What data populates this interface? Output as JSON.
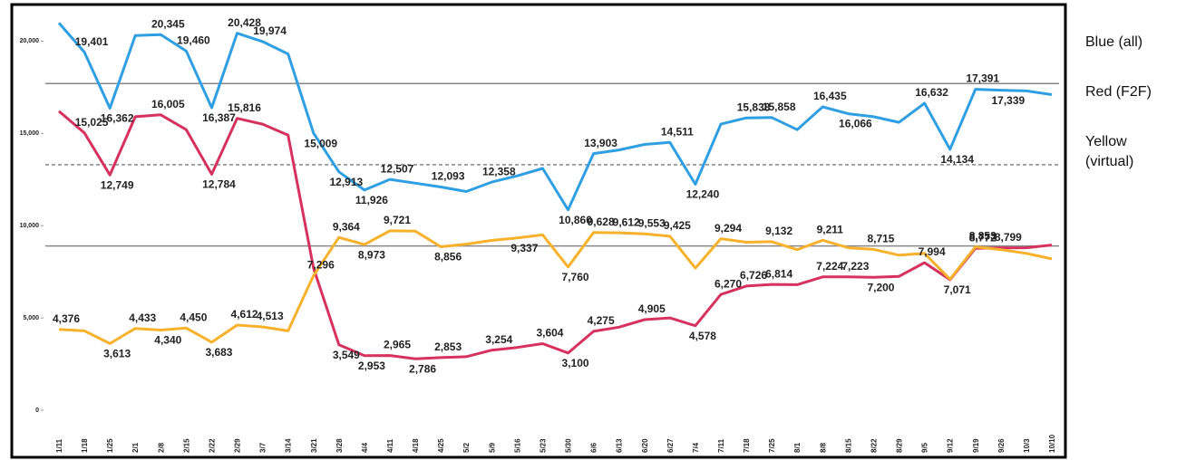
{
  "chart_data": {
    "type": "line",
    "categories": [
      "1/11",
      "1/18",
      "1/25",
      "2/1",
      "2/8",
      "2/15",
      "2/22",
      "2/29",
      "3/7",
      "3/14",
      "3/21",
      "3/28",
      "4/4",
      "4/11",
      "4/18",
      "4/25",
      "5/2",
      "5/9",
      "5/16",
      "5/23",
      "5/30",
      "6/6",
      "6/13",
      "6/20",
      "6/27",
      "7/4",
      "7/11",
      "7/18",
      "7/25",
      "8/1",
      "8/8",
      "8/15",
      "8/22",
      "8/29",
      "9/5",
      "9/12",
      "9/19",
      "9/26",
      "10/3",
      "10/10"
    ],
    "series": [
      {
        "name": "Blue (all)",
        "color": "#2f9fe3",
        "values": [
          20980,
          19401,
          16362,
          20300,
          20345,
          19460,
          16387,
          20428,
          19974,
          19300,
          15009,
          12913,
          11926,
          12507,
          12300,
          12093,
          11850,
          12358,
          12700,
          13100,
          10860,
          13903,
          14100,
          14400,
          14511,
          12240,
          15500,
          15838,
          15858,
          15200,
          16435,
          16066,
          15900,
          15600,
          16632,
          14134,
          17391,
          17339,
          17300,
          17100
        ],
        "value_labels": [
          null,
          "19,401",
          "16,362",
          null,
          "20,345",
          "19,460",
          "16,387",
          "20,428",
          "19,974",
          null,
          "15,009",
          "12,913",
          "11,926",
          "12,507",
          null,
          "12,093",
          null,
          "12,358",
          null,
          null,
          "10,860",
          "13,903",
          null,
          null,
          "14,511",
          "12,240",
          null,
          "15,838",
          "15,858",
          null,
          "16,435",
          "16,066",
          null,
          null,
          "16,632",
          "14,134",
          "17,391",
          "17,339",
          null,
          null
        ]
      },
      {
        "name": "Red (F2F)",
        "color": "#d6315f",
        "values": [
          16200,
          15025,
          12749,
          15900,
          16005,
          15200,
          12784,
          15816,
          15500,
          14900,
          7700,
          3549,
          2953,
          2965,
          2786,
          2853,
          2900,
          3254,
          3400,
          3604,
          3100,
          4275,
          4500,
          4905,
          5000,
          4578,
          6270,
          6726,
          6814,
          6800,
          7224,
          7223,
          7200,
          7250,
          7994,
          7071,
          8772,
          8799,
          8800,
          8950
        ],
        "value_labels": [
          null,
          "15,025",
          "12,749",
          null,
          "16,005",
          null,
          "12,784",
          "15,816",
          null,
          null,
          null,
          "3,549",
          "2,953",
          "2,965",
          "2,786",
          "2,853",
          null,
          "3,254",
          null,
          "3,604",
          "3,100",
          "4,275",
          null,
          "4,905",
          null,
          "4,578",
          "6,270",
          "6,726",
          "6,814",
          null,
          "7,224",
          "7,223",
          "7,200",
          null,
          "7,994",
          "7,071",
          "8,772",
          "8,799",
          null,
          null
        ]
      },
      {
        "name": "Yellow (virtual)",
        "color": "#f7b12b",
        "values": [
          4376,
          4300,
          3613,
          4433,
          4340,
          4450,
          3683,
          4612,
          4513,
          4300,
          7296,
          9364,
          8973,
          9721,
          9700,
          8856,
          9000,
          9200,
          9337,
          9500,
          7760,
          9628,
          9612,
          9553,
          9425,
          7700,
          9294,
          9100,
          9132,
          8700,
          9211,
          8800,
          8715,
          8400,
          8500,
          7100,
          8853,
          8700,
          8500,
          8200
        ],
        "value_labels": [
          "4,376",
          null,
          "3,613",
          "4,433",
          "4,340",
          "4,450",
          "3,683",
          "4,612",
          "4,513",
          null,
          "7,296",
          "9,364",
          "8,973",
          "9,721",
          null,
          "8,856",
          null,
          null,
          "9,337",
          null,
          "7,760",
          "9,628",
          "9,612",
          "9,553",
          "9,425",
          null,
          "9,294",
          null,
          "9,132",
          null,
          "9,211",
          null,
          "8,715",
          null,
          null,
          null,
          "8,853",
          null,
          null,
          null
        ]
      }
    ],
    "ylim": [
      0,
      21000
    ],
    "yticks": [
      0,
      {
        "value": 5000,
        "label": "5,000"
      },
      {
        "value": 10000,
        "label": "10,000"
      },
      {
        "value": 15000,
        "label": "15,000"
      },
      {
        "value": 20000,
        "label": "20,000"
      }
    ],
    "reference_lines": [
      {
        "value": 17700,
        "style": "solid"
      },
      {
        "value": 13300,
        "style": "dashed"
      },
      {
        "value": 8900,
        "style": "solid"
      }
    ]
  }
}
